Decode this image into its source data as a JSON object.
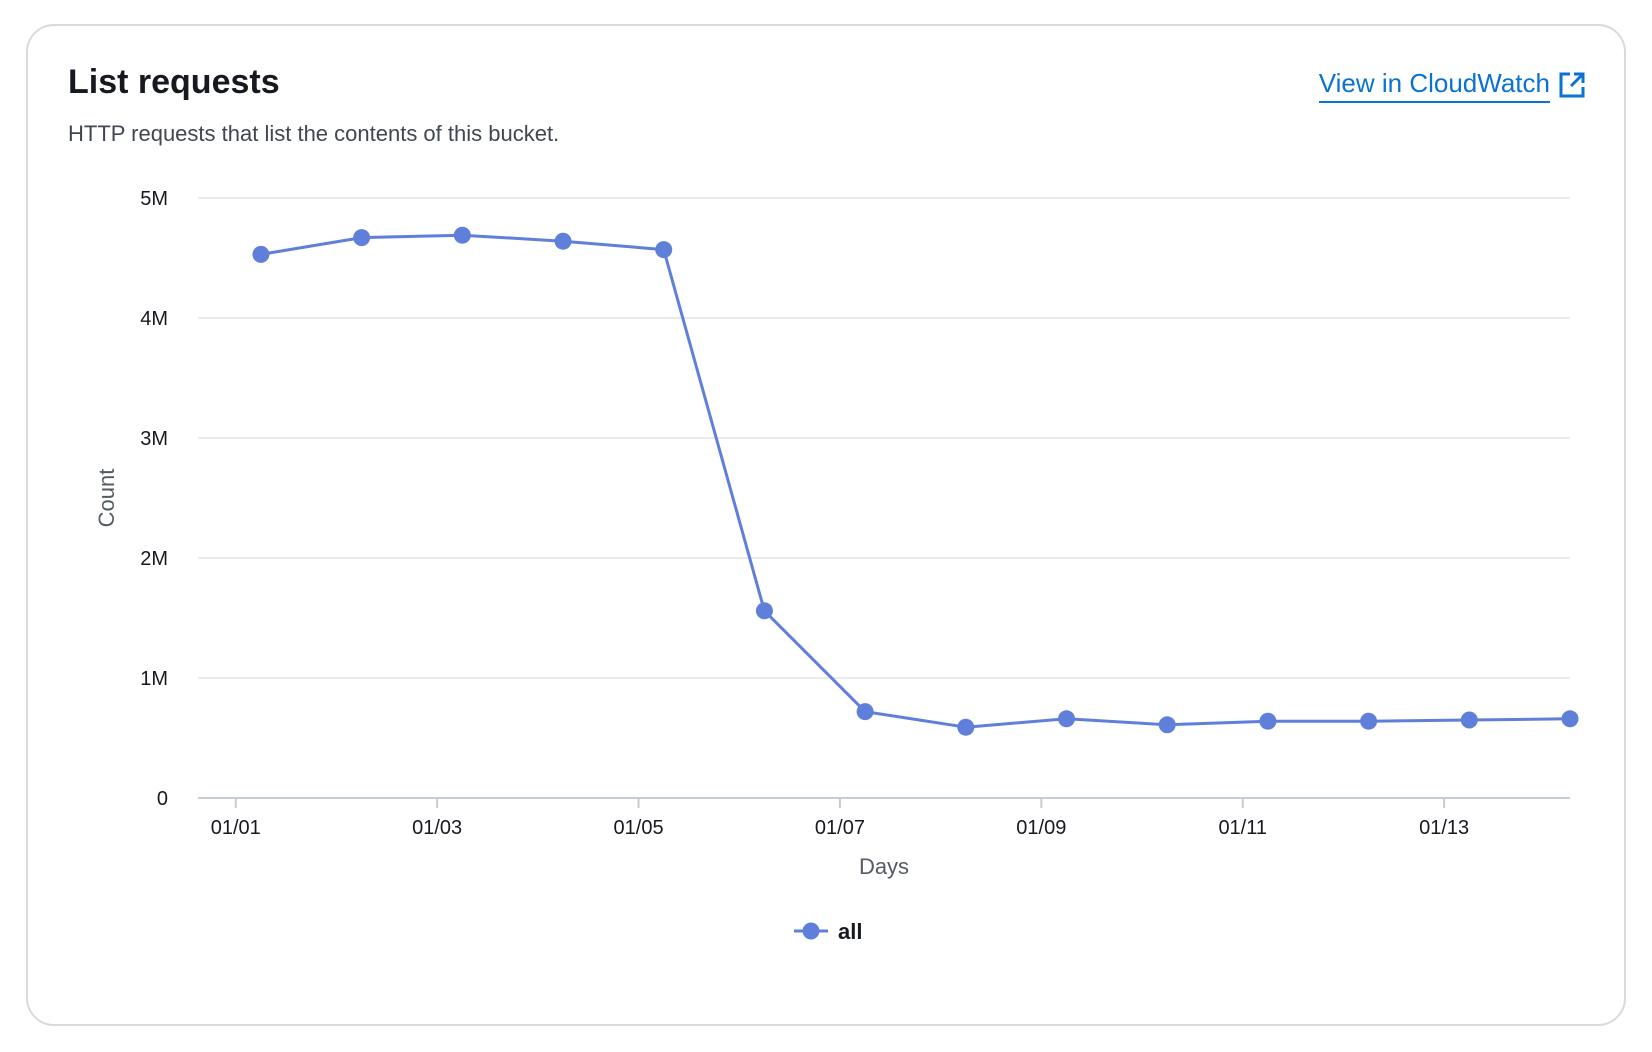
{
  "header": {
    "title": "List requests",
    "subtitle": "HTTP requests that list the contents of this bucket.",
    "link_label": "View in CloudWatch",
    "link_icon": "external-link-icon"
  },
  "colors": {
    "series": "#5f7fdb",
    "link": "#0972d3",
    "grid": "#e9ebed",
    "axis": "#c6ccd3"
  },
  "chart_data": {
    "type": "line",
    "xlabel": "Days",
    "ylabel": "Count",
    "x_tick_labels": [
      "01/01",
      "01/03",
      "01/05",
      "01/07",
      "01/09",
      "01/11",
      "01/13"
    ],
    "y_tick_labels": [
      "0",
      "1M",
      "2M",
      "3M",
      "4M",
      "5M"
    ],
    "y_ticks": [
      0,
      1000000,
      2000000,
      3000000,
      4000000,
      5000000
    ],
    "ylim": [
      0,
      5000000
    ],
    "xlim": [
      "2024-12-31T15:00",
      "2025-01-14T06:00"
    ],
    "x_ticks": [
      "2025-01-01T00:00",
      "2025-01-03T00:00",
      "2025-01-05T00:00",
      "2025-01-07T00:00",
      "2025-01-09T00:00",
      "2025-01-11T00:00",
      "2025-01-13T00:00"
    ],
    "legend_position": "bottom-center",
    "grid": true,
    "series": [
      {
        "name": "all",
        "x": [
          "2025-01-01T06:00",
          "2025-01-02T06:00",
          "2025-01-03T06:00",
          "2025-01-04T06:00",
          "2025-01-05T06:00",
          "2025-01-06T06:00",
          "2025-01-07T06:00",
          "2025-01-08T06:00",
          "2025-01-09T06:00",
          "2025-01-10T06:00",
          "2025-01-11T06:00",
          "2025-01-12T06:00",
          "2025-01-13T06:00",
          "2025-01-14T06:00"
        ],
        "values": [
          4530000,
          4670000,
          4690000,
          4640000,
          4570000,
          1560000,
          720000,
          590000,
          660000,
          610000,
          640000,
          640000,
          650000,
          660000
        ]
      }
    ]
  }
}
